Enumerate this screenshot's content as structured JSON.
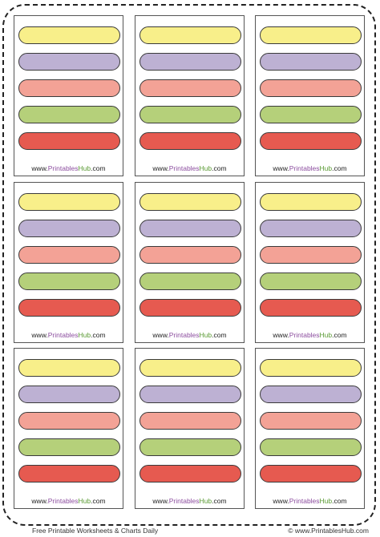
{
  "labels": {
    "url_prefix": "www.",
    "url_printables": "Printables",
    "url_hub": "Hub",
    "url_suffix": ".com"
  },
  "stripe_colors": [
    "#f8ef8a",
    "#bdb1d3",
    "#f3a296",
    "#b5d07a",
    "#e65a50"
  ],
  "brand_colors": {
    "printables": "#8b4c9e",
    "hub": "#5a9a33"
  },
  "footer": {
    "left_text": "Free Printable Worksheets & Charts Daily",
    "right_text": "© www.PrintablesHub.com"
  }
}
